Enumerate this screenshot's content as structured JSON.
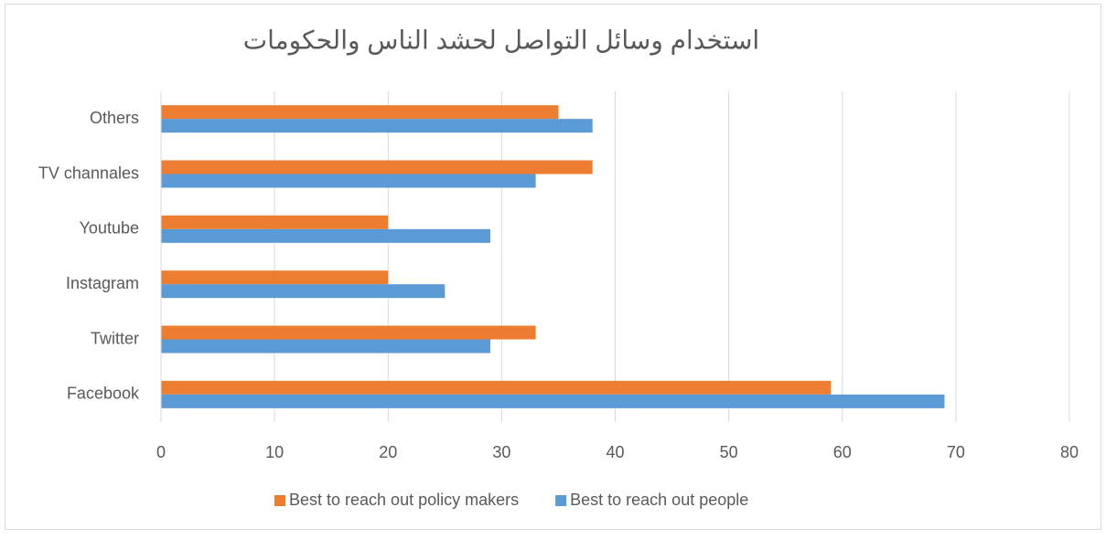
{
  "chart_data": {
    "type": "bar",
    "orientation": "horizontal",
    "title": "استخدام وسائل التواصل لحشد الناس والحكومات",
    "categories": [
      "Facebook",
      "Twitter",
      "Instagram",
      "Youtube",
      "TV channales",
      "Others"
    ],
    "series": [
      {
        "name": "Best to reach out policy makers",
        "color": "#ed7d31",
        "values": [
          59,
          33,
          20,
          20,
          38,
          35
        ]
      },
      {
        "name": "Best to reach out people",
        "color": "#5b9bd5",
        "values": [
          69,
          29,
          25,
          29,
          33,
          38
        ]
      }
    ],
    "xlim": [
      0,
      80
    ],
    "xticks": [
      0,
      10,
      20,
      30,
      40,
      50,
      60,
      70,
      80
    ],
    "grid": true,
    "legend": "bottom"
  }
}
